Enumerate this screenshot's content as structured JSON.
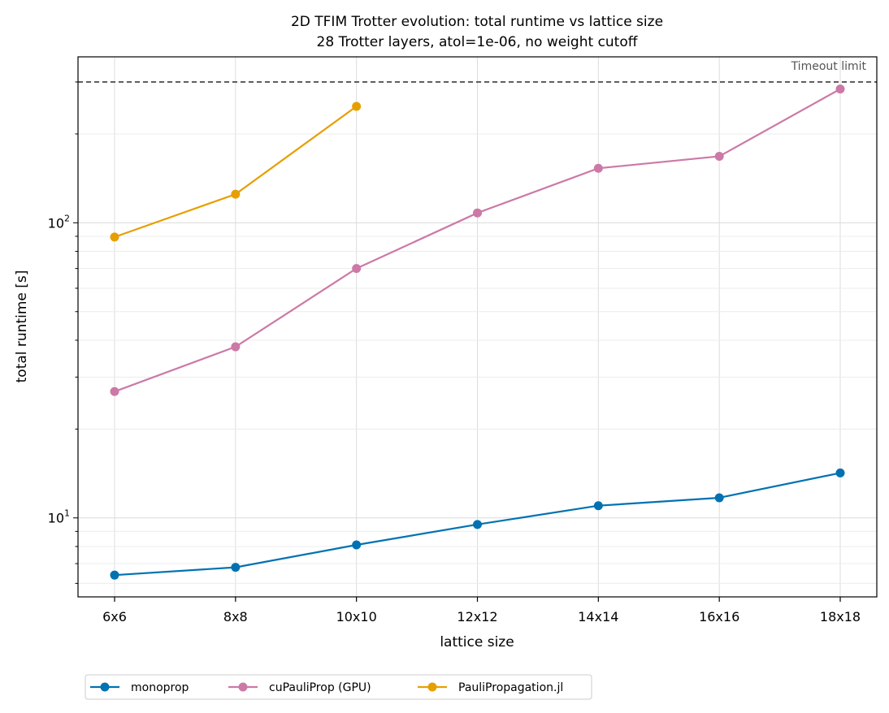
{
  "chart_data": {
    "type": "line",
    "title": "2D TFIM Trotter evolution: total runtime vs lattice size",
    "subtitle": "28 Trotter layers, atol=1e-06, no weight cutoff",
    "xlabel": "lattice size",
    "ylabel": "total runtime [s]",
    "y_scale": "log",
    "ylim": [
      5.4,
      365
    ],
    "y_major_ticks": [
      {
        "value": 10,
        "base": "10",
        "exp": "1"
      },
      {
        "value": 100,
        "base": "10",
        "exp": "2"
      }
    ],
    "categories": [
      "6x6",
      "8x8",
      "10x10",
      "12x12",
      "14x14",
      "16x16",
      "18x18"
    ],
    "grid": true,
    "legend_position": "bottom",
    "reference_line": {
      "label": "Timeout limit",
      "value": 300,
      "color": "#555555"
    },
    "series": [
      {
        "name": "monoprop",
        "color": "#0072B2",
        "values": [
          6.4,
          6.8,
          8.1,
          9.5,
          11.0,
          11.7,
          14.2
        ]
      },
      {
        "name": "cuPauliProp (GPU)",
        "color": "#CC79A7",
        "values": [
          26.8,
          38.0,
          70.0,
          108.0,
          153.0,
          168.0,
          284.0
        ]
      },
      {
        "name": "PauliPropagation.jl",
        "color": "#E69F00",
        "values": [
          89.5,
          125.0,
          248.0,
          null,
          null,
          null,
          null
        ]
      }
    ]
  }
}
